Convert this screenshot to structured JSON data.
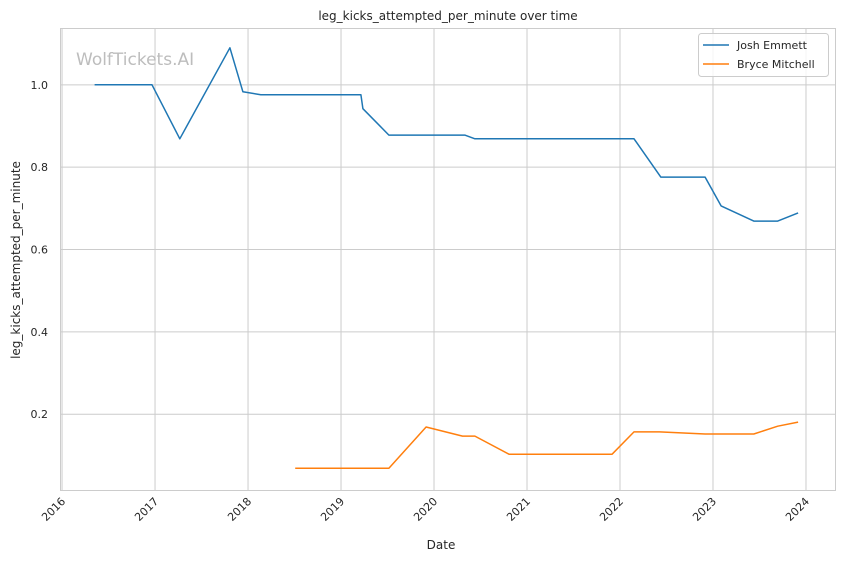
{
  "chart_data": {
    "type": "line",
    "title": "leg_kicks_attempted_per_minute over time",
    "xlabel": "Date",
    "ylabel": "leg_kicks_attempted_per_minute",
    "watermark": "WolfTickets.AI",
    "xlim": [
      2015.978,
      2024.312
    ],
    "ylim": [
      0.016,
      1.138
    ],
    "x_ticks": [
      "2016",
      "2017",
      "2018",
      "2019",
      "2020",
      "2021",
      "2022",
      "2023",
      "2024"
    ],
    "y_ticks": [
      "0.2",
      "0.4",
      "0.6",
      "0.8",
      "1.0"
    ],
    "grid": true,
    "legend_position": "top-right",
    "series": [
      {
        "name": "Josh Emmett",
        "color": "#1f77b4",
        "x": [
          "2016-05-08",
          "2016-12-20",
          "2017-04-08",
          "2017-10-22",
          "2017-12-12",
          "2018-02-20",
          "2019-03-20",
          "2019-03-28",
          "2019-07-08",
          "2020-05-01",
          "2020-06-10",
          "2022-02-25",
          "2022-06-10",
          "2022-12-01",
          "2023-02-02",
          "2023-06-10",
          "2023-09-12",
          "2023-12-01"
        ],
        "y": [
          1.0,
          1.0,
          0.869,
          1.09,
          0.983,
          0.976,
          0.976,
          0.942,
          0.878,
          0.878,
          0.869,
          0.869,
          0.776,
          0.776,
          0.706,
          0.669,
          0.669,
          0.689
        ]
      },
      {
        "name": "Bryce Mitchell",
        "color": "#ff7f0e",
        "x": [
          "2018-07-05",
          "2019-07-08",
          "2019-12-01",
          "2020-04-22",
          "2020-06-10",
          "2020-10-22",
          "2021-12-01",
          "2022-02-25",
          "2022-06-05",
          "2022-12-01",
          "2023-06-10",
          "2023-09-12",
          "2023-12-01"
        ],
        "y": [
          0.069,
          0.069,
          0.169,
          0.147,
          0.147,
          0.103,
          0.103,
          0.157,
          0.157,
          0.152,
          0.152,
          0.171,
          0.181
        ]
      }
    ]
  }
}
